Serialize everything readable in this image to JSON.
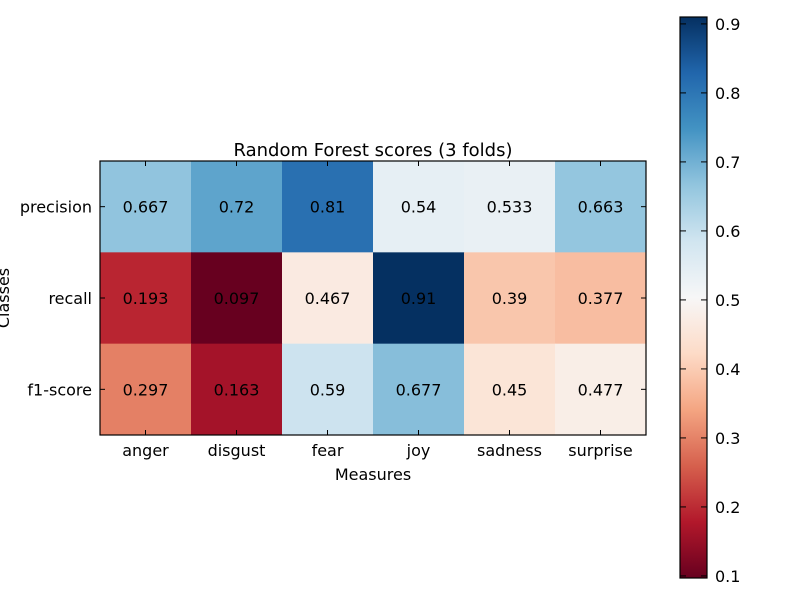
{
  "chart_data": {
    "type": "heatmap",
    "title": "Random Forest scores (3 folds)",
    "xlabel": "Measures",
    "ylabel": "Classes",
    "x_categories": [
      "anger",
      "disgust",
      "fear",
      "joy",
      "sadness",
      "surprise"
    ],
    "y_categories": [
      "precision",
      "recall",
      "f1-score"
    ],
    "values": [
      [
        0.667,
        0.72,
        0.81,
        0.54,
        0.533,
        0.663
      ],
      [
        0.193,
        0.097,
        0.467,
        0.91,
        0.39,
        0.377
      ],
      [
        0.297,
        0.163,
        0.59,
        0.677,
        0.45,
        0.477
      ]
    ],
    "value_labels": [
      [
        "0.667",
        "0.72",
        "0.81",
        "0.54",
        "0.533",
        "0.663"
      ],
      [
        "0.193",
        "0.097",
        "0.467",
        "0.91",
        "0.39",
        "0.377"
      ],
      [
        "0.297",
        "0.163",
        "0.59",
        "0.677",
        "0.45",
        "0.477"
      ]
    ],
    "colormap": "RdBu",
    "colorbar": {
      "range": [
        0.097,
        0.91
      ],
      "ticks": [
        0.1,
        0.2,
        0.3,
        0.4,
        0.5,
        0.6,
        0.7,
        0.8,
        0.9
      ],
      "tick_labels": [
        "0.1",
        "0.2",
        "0.3",
        "0.4",
        "0.5",
        "0.6",
        "0.7",
        "0.8",
        "0.9"
      ]
    },
    "grid": false
  }
}
